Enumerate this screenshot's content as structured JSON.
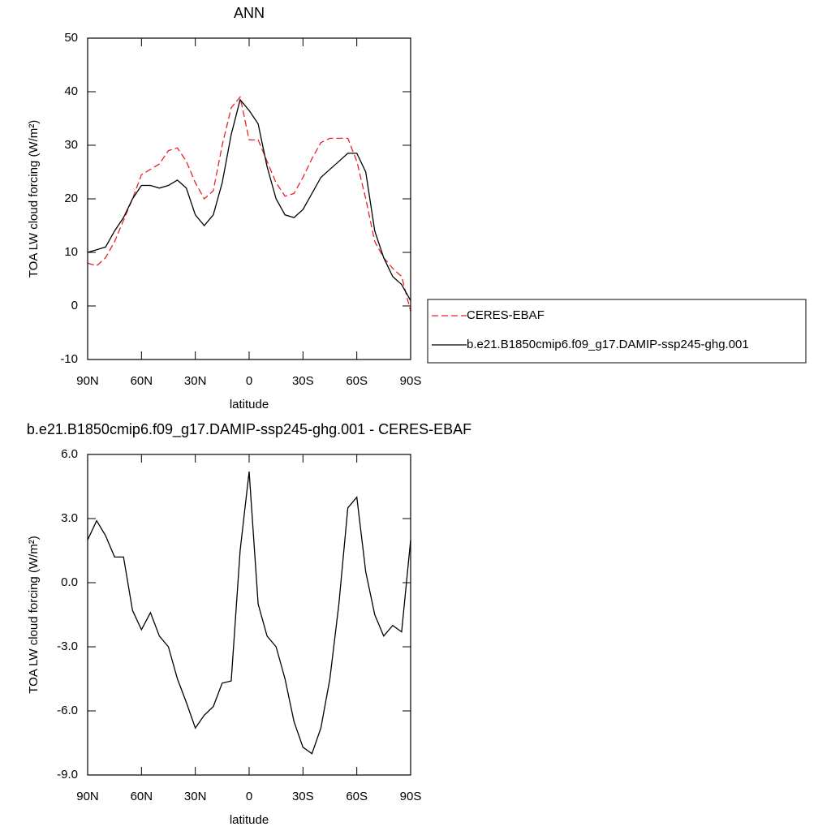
{
  "chart_data": [
    {
      "type": "line",
      "title": "ANN",
      "xlabel": "latitude",
      "ylabel": "TOA LW cloud forcing (W/m²)",
      "x": [
        90,
        85,
        80,
        75,
        70,
        65,
        60,
        55,
        50,
        45,
        40,
        35,
        30,
        25,
        20,
        15,
        10,
        5,
        0,
        -5,
        -10,
        -15,
        -20,
        -25,
        -30,
        -35,
        -40,
        -45,
        -50,
        -55,
        -60,
        -65,
        -70,
        -75,
        -80,
        -85,
        -90
      ],
      "xlim": [
        90,
        -90
      ],
      "xticks": [
        {
          "value": 90,
          "label": "90N"
        },
        {
          "value": 60,
          "label": "60N"
        },
        {
          "value": 30,
          "label": "30N"
        },
        0,
        {
          "value": -30,
          "label": "30S"
        },
        {
          "value": -60,
          "label": "60S"
        },
        {
          "value": -90,
          "label": "90S"
        }
      ],
      "ylim": [
        -10,
        50
      ],
      "yticks": [
        50,
        40,
        30,
        20,
        10,
        0,
        -10
      ],
      "series": [
        {
          "name": "CERES-EBAF",
          "color": "#e8212a",
          "dash": true,
          "values": [
            8,
            7.5,
            9,
            12,
            16,
            20,
            24.5,
            25.5,
            26.5,
            29,
            29.5,
            27,
            23,
            20,
            21.5,
            30,
            37,
            39,
            31,
            31,
            27,
            23,
            20.5,
            21,
            24,
            27.5,
            30.5,
            31.3,
            31.3,
            31.3,
            27,
            20,
            12,
            9,
            7,
            5.5,
            -1
          ]
        },
        {
          "name": "b.e21.B1850cmip6.f09_g17.DAMIP-ssp245-ghg.001",
          "color": "#000000",
          "dash": false,
          "values": [
            10,
            10.5,
            11,
            14,
            16.5,
            20,
            22.5,
            22.5,
            22,
            22.5,
            23.5,
            22,
            17,
            15,
            17,
            23,
            32,
            38.5,
            36.5,
            34,
            26,
            20,
            17,
            16.5,
            18,
            21,
            24,
            25.5,
            27,
            28.5,
            28.5,
            25,
            14,
            9,
            5.5,
            4,
            1
          ]
        }
      ]
    },
    {
      "type": "line",
      "title": "b.e21.B1850cmip6.f09_g17.DAMIP-ssp245-ghg.001 - CERES-EBAF",
      "xlabel": "latitude",
      "ylabel": "TOA LW cloud forcing (W/m²)",
      "x": [
        90,
        85,
        80,
        75,
        70,
        65,
        60,
        55,
        50,
        45,
        40,
        35,
        30,
        25,
        20,
        15,
        10,
        5,
        0,
        -5,
        -10,
        -15,
        -20,
        -25,
        -30,
        -35,
        -40,
        -45,
        -50,
        -55,
        -60,
        -65,
        -70,
        -75,
        -80,
        -85,
        -90
      ],
      "xlim": [
        90,
        -90
      ],
      "xticks": [
        {
          "value": 90,
          "label": "90N"
        },
        {
          "value": 60,
          "label": "60N"
        },
        {
          "value": 30,
          "label": "30N"
        },
        0,
        {
          "value": -30,
          "label": "30S"
        },
        {
          "value": -60,
          "label": "60S"
        },
        {
          "value": -90,
          "label": "90S"
        }
      ],
      "ylim": [
        -9,
        6
      ],
      "yticks": [
        {
          "value": 6,
          "label": "6.0"
        },
        {
          "value": 3,
          "label": "3.0"
        },
        {
          "value": 0,
          "label": "0.0"
        },
        {
          "value": -3,
          "label": "-3.0"
        },
        {
          "value": -6,
          "label": "-6.0"
        },
        {
          "value": -9,
          "label": "-9.0"
        }
      ],
      "color": "#000000",
      "values": [
        2.0,
        2.9,
        2.2,
        1.2,
        1.2,
        -1.3,
        -2.2,
        -1.4,
        -2.5,
        -3.0,
        -4.5,
        -5.6,
        -6.8,
        -6.2,
        -5.8,
        -4.7,
        -4.6,
        1.5,
        5.2,
        -1.0,
        -2.5,
        -3.0,
        -4.5,
        -6.5,
        -7.7,
        -8.0,
        -6.8,
        -4.5,
        -1.0,
        3.5,
        4.0,
        0.5,
        -1.5,
        -2.5,
        -2.0,
        -2.3,
        2.0
      ]
    }
  ]
}
